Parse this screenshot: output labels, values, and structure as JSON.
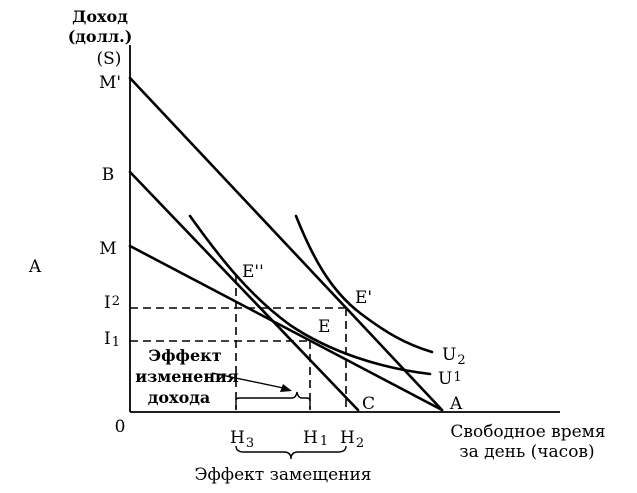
{
  "axis": {
    "y_title_line1": "Доход",
    "y_title_line2": "(долл.)",
    "y_unit": "(S)",
    "x_title_line1": "Свободное время",
    "x_title_line2": "за день (часов)",
    "origin": "0"
  },
  "left_label": "A",
  "y_ticks": {
    "M_prime": "M'",
    "B": "B",
    "M": "M",
    "I2": "I",
    "I2_sub": "2",
    "I1": "I",
    "I1_sub": "1"
  },
  "x_ticks": {
    "H3": "H",
    "H3_sub": "3",
    "H1": "H",
    "H1_sub": "1",
    "H2": "H",
    "H2_sub": "2"
  },
  "points": {
    "E_double_prime": "E''",
    "E_prime": "E'",
    "E": "E"
  },
  "lines": {
    "C": "C",
    "A": "A"
  },
  "curves": {
    "U2": "U",
    "U2_sub": "2",
    "U1": "U",
    "U1_sub": "1"
  },
  "annotations": {
    "income_effect_line1": "Эффект",
    "income_effect_line2": "изменения",
    "income_effect_line3": "дохода",
    "substitution_effect": "Эффект замещения"
  }
}
